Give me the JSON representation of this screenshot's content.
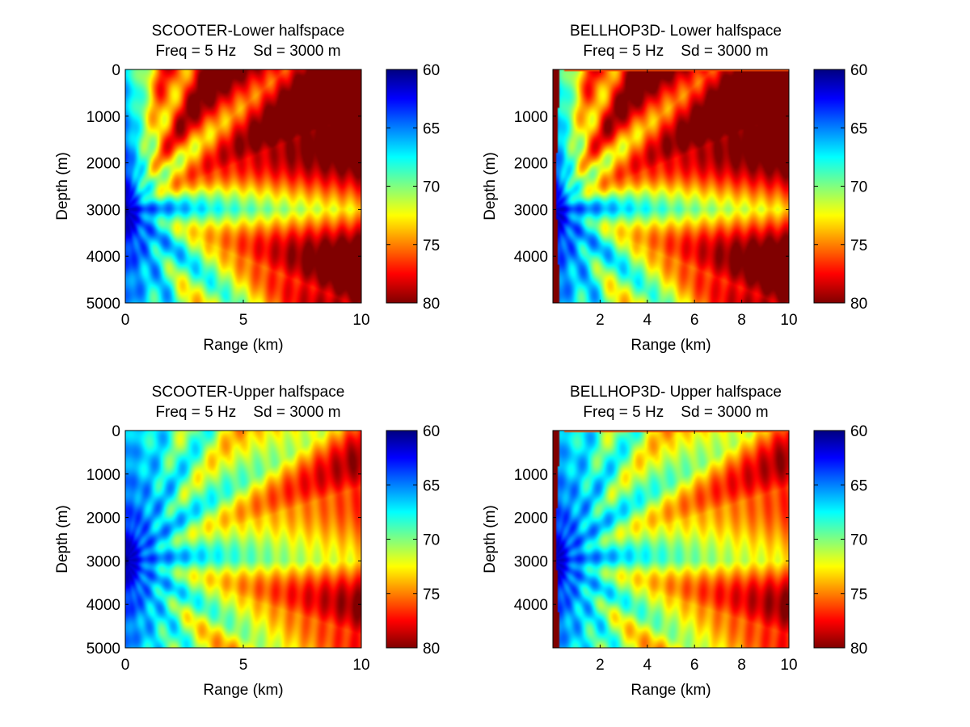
{
  "figure": {
    "background": "#ffffff",
    "colormap": "jet",
    "colormap_direction": "dark red at low values (60), dark blue at high values (80)"
  },
  "chart_data": [
    {
      "type": "heatmap",
      "title": "SCOOTER-Lower halfspace",
      "subtitle": "Freq = 5 Hz    Sd = 3000 m",
      "xlabel": "Range (km)",
      "ylabel": "Depth (m)",
      "xlim": [
        0,
        10
      ],
      "ylim": [
        0,
        5000
      ],
      "y_reversed": true,
      "xticks": [
        0,
        5,
        10
      ],
      "yticks": [
        0,
        1000,
        2000,
        3000,
        4000,
        5000
      ],
      "clim": [
        60,
        80
      ],
      "colorbar_ticks": [
        60,
        65,
        70,
        75,
        80
      ],
      "source_depth": 3000,
      "frequency": 5,
      "beam_fan": "lower"
    },
    {
      "type": "heatmap",
      "title": "BELLHOP3D- Lower halfspace",
      "subtitle": "Freq = 5 Hz    Sd = 3000 m",
      "xlabel": "Range (km)",
      "ylabel": "Depth (m)",
      "xlim": [
        0,
        10
      ],
      "ylim": [
        0,
        5000
      ],
      "y_reversed": true,
      "xticks": [
        2,
        4,
        6,
        8,
        10
      ],
      "yticks": [
        1000,
        2000,
        3000,
        4000
      ],
      "clim": [
        60,
        80
      ],
      "colorbar_ticks": [
        60,
        65,
        70,
        75,
        80
      ],
      "source_depth": 3000,
      "frequency": 5,
      "beam_fan": "lower",
      "left_edge_artifact": true
    },
    {
      "type": "heatmap",
      "title": "SCOOTER-Upper halfspace",
      "subtitle": "Freq = 5 Hz    Sd = 3000 m",
      "xlabel": "Range (km)",
      "ylabel": "Depth (m)",
      "xlim": [
        0,
        10
      ],
      "ylim": [
        0,
        5000
      ],
      "y_reversed": true,
      "xticks": [
        0,
        5,
        10
      ],
      "yticks": [
        0,
        1000,
        2000,
        3000,
        4000,
        5000
      ],
      "clim": [
        60,
        80
      ],
      "colorbar_ticks": [
        60,
        65,
        70,
        75,
        80
      ],
      "source_depth": 3000,
      "frequency": 5,
      "beam_fan": "upper"
    },
    {
      "type": "heatmap",
      "title": "BELLHOP3D- Upper halfspace",
      "subtitle": "Freq = 5 Hz    Sd = 3000 m",
      "xlabel": "Range (km)",
      "ylabel": "Depth (m)",
      "xlim": [
        0,
        10
      ],
      "ylim": [
        0,
        5000
      ],
      "y_reversed": true,
      "xticks": [
        2,
        4,
        6,
        8,
        10
      ],
      "yticks": [
        1000,
        2000,
        3000,
        4000
      ],
      "clim": [
        60,
        80
      ],
      "colorbar_ticks": [
        60,
        65,
        70,
        75,
        80
      ],
      "source_depth": 3000,
      "frequency": 5,
      "beam_fan": "upper",
      "left_edge_artifact": true
    }
  ]
}
